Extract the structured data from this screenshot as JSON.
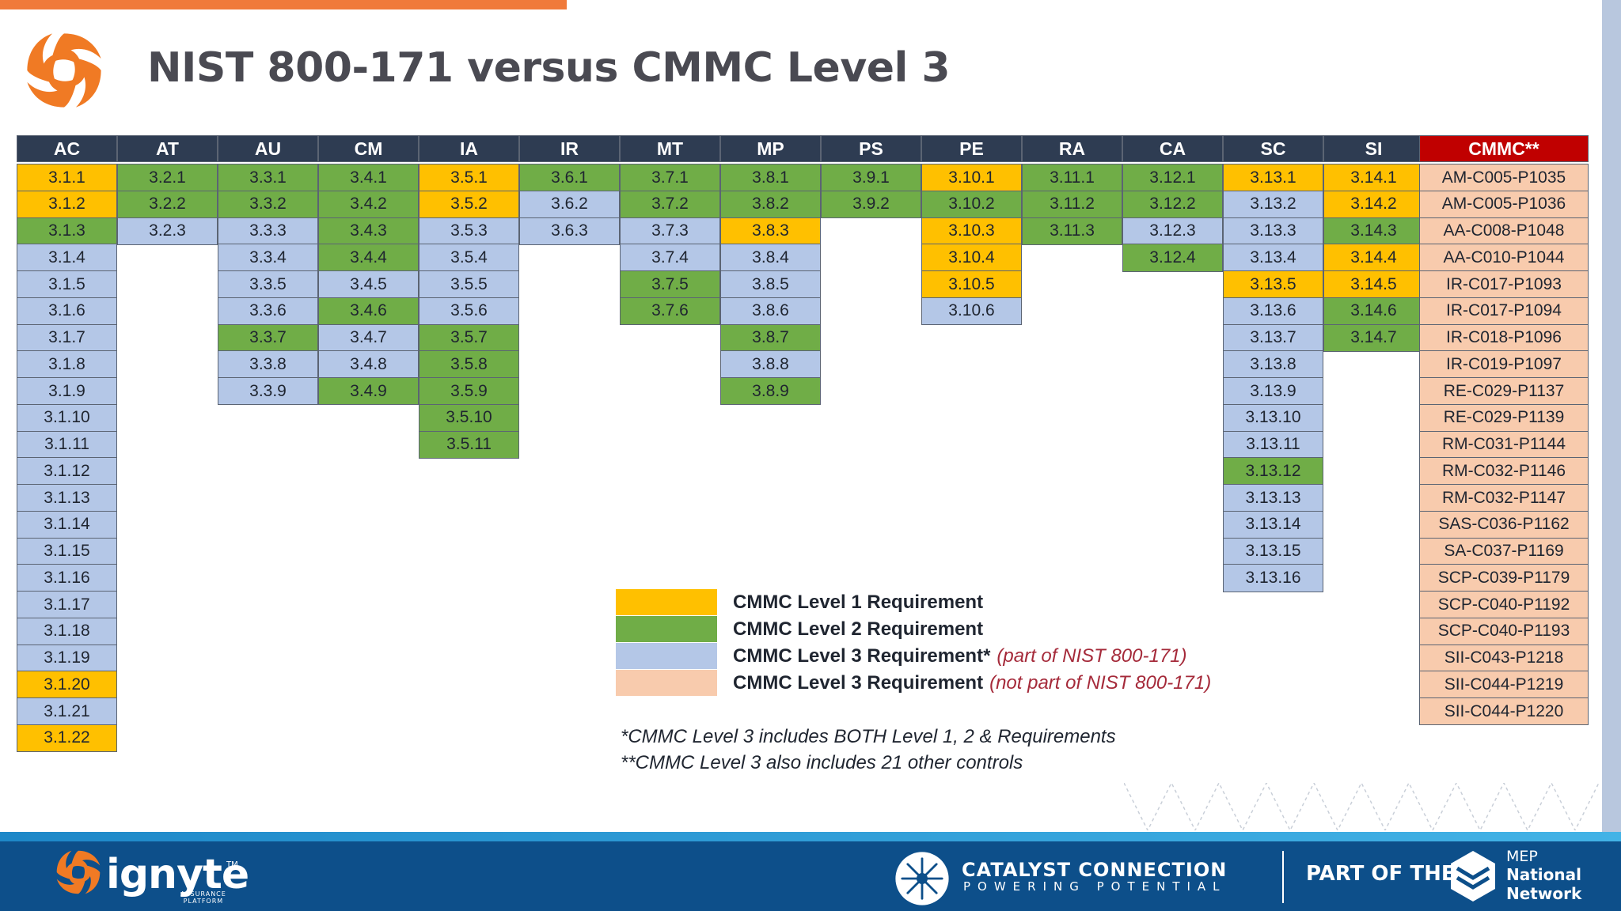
{
  "title": "NIST 800-171 versus CMMC Level 3",
  "levels": {
    "l1": "#ffc000",
    "l2": "#70ad47",
    "l3": "#b4c7e7",
    "lx": "#f8cbad"
  },
  "table": {
    "columns": [
      {
        "header": "AC",
        "cells": [
          {
            "label": "3.1.1",
            "level": "l1"
          },
          {
            "label": "3.1.2",
            "level": "l1"
          },
          {
            "label": "3.1.3",
            "level": "l2"
          },
          {
            "label": "3.1.4",
            "level": "l3"
          },
          {
            "label": "3.1.5",
            "level": "l3"
          },
          {
            "label": "3.1.6",
            "level": "l3"
          },
          {
            "label": "3.1.7",
            "level": "l3"
          },
          {
            "label": "3.1.8",
            "level": "l3"
          },
          {
            "label": "3.1.9",
            "level": "l3"
          },
          {
            "label": "3.1.10",
            "level": "l3"
          },
          {
            "label": "3.1.11",
            "level": "l3"
          },
          {
            "label": "3.1.12",
            "level": "l3"
          },
          {
            "label": "3.1.13",
            "level": "l3"
          },
          {
            "label": "3.1.14",
            "level": "l3"
          },
          {
            "label": "3.1.15",
            "level": "l3"
          },
          {
            "label": "3.1.16",
            "level": "l3"
          },
          {
            "label": "3.1.17",
            "level": "l3"
          },
          {
            "label": "3.1.18",
            "level": "l3"
          },
          {
            "label": "3.1.19",
            "level": "l3"
          },
          {
            "label": "3.1.20",
            "level": "l1"
          },
          {
            "label": "3.1.21",
            "level": "l3"
          },
          {
            "label": "3.1.22",
            "level": "l1"
          }
        ]
      },
      {
        "header": "AT",
        "cells": [
          {
            "label": "3.2.1",
            "level": "l2"
          },
          {
            "label": "3.2.2",
            "level": "l2"
          },
          {
            "label": "3.2.3",
            "level": "l3"
          }
        ]
      },
      {
        "header": "AU",
        "cells": [
          {
            "label": "3.3.1",
            "level": "l2"
          },
          {
            "label": "3.3.2",
            "level": "l2"
          },
          {
            "label": "3.3.3",
            "level": "l3"
          },
          {
            "label": "3.3.4",
            "level": "l3"
          },
          {
            "label": "3.3.5",
            "level": "l3"
          },
          {
            "label": "3.3.6",
            "level": "l3"
          },
          {
            "label": "3.3.7",
            "level": "l2"
          },
          {
            "label": "3.3.8",
            "level": "l3"
          },
          {
            "label": "3.3.9",
            "level": "l3"
          }
        ]
      },
      {
        "header": "CM",
        "cells": [
          {
            "label": "3.4.1",
            "level": "l2"
          },
          {
            "label": "3.4.2",
            "level": "l2"
          },
          {
            "label": "3.4.3",
            "level": "l2"
          },
          {
            "label": "3.4.4",
            "level": "l2"
          },
          {
            "label": "3.4.5",
            "level": "l3"
          },
          {
            "label": "3.4.6",
            "level": "l2"
          },
          {
            "label": "3.4.7",
            "level": "l3"
          },
          {
            "label": "3.4.8",
            "level": "l3"
          },
          {
            "label": "3.4.9",
            "level": "l2"
          }
        ]
      },
      {
        "header": "IA",
        "cells": [
          {
            "label": "3.5.1",
            "level": "l1"
          },
          {
            "label": "3.5.2",
            "level": "l1"
          },
          {
            "label": "3.5.3",
            "level": "l3"
          },
          {
            "label": "3.5.4",
            "level": "l3"
          },
          {
            "label": "3.5.5",
            "level": "l3"
          },
          {
            "label": "3.5.6",
            "level": "l3"
          },
          {
            "label": "3.5.7",
            "level": "l2"
          },
          {
            "label": "3.5.8",
            "level": "l2"
          },
          {
            "label": "3.5.9",
            "level": "l2"
          },
          {
            "label": "3.5.10",
            "level": "l2"
          },
          {
            "label": "3.5.11",
            "level": "l2"
          }
        ]
      },
      {
        "header": "IR",
        "cells": [
          {
            "label": "3.6.1",
            "level": "l2"
          },
          {
            "label": "3.6.2",
            "level": "l3"
          },
          {
            "label": "3.6.3",
            "level": "l3"
          }
        ]
      },
      {
        "header": "MT",
        "cells": [
          {
            "label": "3.7.1",
            "level": "l2"
          },
          {
            "label": "3.7.2",
            "level": "l2"
          },
          {
            "label": "3.7.3",
            "level": "l3"
          },
          {
            "label": "3.7.4",
            "level": "l3"
          },
          {
            "label": "3.7.5",
            "level": "l2"
          },
          {
            "label": "3.7.6",
            "level": "l2"
          }
        ]
      },
      {
        "header": "MP",
        "cells": [
          {
            "label": "3.8.1",
            "level": "l2"
          },
          {
            "label": "3.8.2",
            "level": "l2"
          },
          {
            "label": "3.8.3",
            "level": "l1"
          },
          {
            "label": "3.8.4",
            "level": "l3"
          },
          {
            "label": "3.8.5",
            "level": "l3"
          },
          {
            "label": "3.8.6",
            "level": "l3"
          },
          {
            "label": "3.8.7",
            "level": "l2"
          },
          {
            "label": "3.8.8",
            "level": "l3"
          },
          {
            "label": "3.8.9",
            "level": "l2"
          }
        ]
      },
      {
        "header": "PS",
        "cells": [
          {
            "label": "3.9.1",
            "level": "l2"
          },
          {
            "label": "3.9.2",
            "level": "l2"
          }
        ]
      },
      {
        "header": "PE",
        "cells": [
          {
            "label": "3.10.1",
            "level": "l1"
          },
          {
            "label": "3.10.2",
            "level": "l2"
          },
          {
            "label": "3.10.3",
            "level": "l1"
          },
          {
            "label": "3.10.4",
            "level": "l1"
          },
          {
            "label": "3.10.5",
            "level": "l1"
          },
          {
            "label": "3.10.6",
            "level": "l3"
          }
        ]
      },
      {
        "header": "RA",
        "cells": [
          {
            "label": "3.11.1",
            "level": "l2"
          },
          {
            "label": "3.11.2",
            "level": "l2"
          },
          {
            "label": "3.11.3",
            "level": "l2"
          }
        ]
      },
      {
        "header": "CA",
        "cells": [
          {
            "label": "3.12.1",
            "level": "l2"
          },
          {
            "label": "3.12.2",
            "level": "l2"
          },
          {
            "label": "3.12.3",
            "level": "l3"
          },
          {
            "label": "3.12.4",
            "level": "l2"
          }
        ]
      },
      {
        "header": "SC",
        "cells": [
          {
            "label": "3.13.1",
            "level": "l1"
          },
          {
            "label": "3.13.2",
            "level": "l3"
          },
          {
            "label": "3.13.3",
            "level": "l3"
          },
          {
            "label": "3.13.4",
            "level": "l3"
          },
          {
            "label": "3.13.5",
            "level": "l1"
          },
          {
            "label": "3.13.6",
            "level": "l3"
          },
          {
            "label": "3.13.7",
            "level": "l3"
          },
          {
            "label": "3.13.8",
            "level": "l3"
          },
          {
            "label": "3.13.9",
            "level": "l3"
          },
          {
            "label": "3.13.10",
            "level": "l3"
          },
          {
            "label": "3.13.11",
            "level": "l3"
          },
          {
            "label": "3.13.12",
            "level": "l2"
          },
          {
            "label": "3.13.13",
            "level": "l3"
          },
          {
            "label": "3.13.14",
            "level": "l3"
          },
          {
            "label": "3.13.15",
            "level": "l3"
          },
          {
            "label": "3.13.16",
            "level": "l3"
          }
        ]
      },
      {
        "header": "SI",
        "cells": [
          {
            "label": "3.14.1",
            "level": "l1"
          },
          {
            "label": "3.14.2",
            "level": "l1"
          },
          {
            "label": "3.14.3",
            "level": "l2"
          },
          {
            "label": "3.14.4",
            "level": "l1"
          },
          {
            "label": "3.14.5",
            "level": "l1"
          },
          {
            "label": "3.14.6",
            "level": "l2"
          },
          {
            "label": "3.14.7",
            "level": "l2"
          }
        ]
      },
      {
        "header": "CMMC**",
        "cells": [
          {
            "label": "AM-C005-P1035",
            "level": "lx"
          },
          {
            "label": "AM-C005-P1036",
            "level": "lx"
          },
          {
            "label": "AA-C008-P1048",
            "level": "lx"
          },
          {
            "label": "AA-C010-P1044",
            "level": "lx"
          },
          {
            "label": "IR-C017-P1093",
            "level": "lx"
          },
          {
            "label": "IR-C017-P1094",
            "level": "lx"
          },
          {
            "label": "IR-C018-P1096",
            "level": "lx"
          },
          {
            "label": "IR-C019-P1097",
            "level": "lx"
          },
          {
            "label": "RE-C029-P1137",
            "level": "lx"
          },
          {
            "label": "RE-C029-P1139",
            "level": "lx"
          },
          {
            "label": "RM-C031-P1144",
            "level": "lx"
          },
          {
            "label": "RM-C032-P1146",
            "level": "lx"
          },
          {
            "label": "RM-C032-P1147",
            "level": "lx"
          },
          {
            "label": "SAS-C036-P1162",
            "level": "lx"
          },
          {
            "label": "SA-C037-P1169",
            "level": "lx"
          },
          {
            "label": "SCP-C039-P1179",
            "level": "lx"
          },
          {
            "label": "SCP-C040-P1192",
            "level": "lx"
          },
          {
            "label": "SCP-C040-P1193",
            "level": "lx"
          },
          {
            "label": "SII-C043-P1218",
            "level": "lx"
          },
          {
            "label": "SII-C044-P1219",
            "level": "lx"
          },
          {
            "label": "SII-C044-P1220",
            "level": "lx"
          }
        ]
      }
    ]
  },
  "legend": [
    {
      "label": "CMMC Level 1 Requirement",
      "note": "",
      "color": "#ffc000"
    },
    {
      "label": "CMMC Level 2 Requirement",
      "note": "",
      "color": "#70ad47"
    },
    {
      "label": "CMMC Level 3 Requirement*",
      "note": "(part of NIST 800-171)",
      "color": "#b4c7e7"
    },
    {
      "label": "CMMC Level 3 Requirement",
      "note": "(not part of NIST 800-171)",
      "color": "#f8cbad"
    }
  ],
  "footnotes": [
    "*CMMC Level 3 includes BOTH Level 1, 2 & Requirements",
    "**CMMC Level 3 also includes 21 other controls"
  ],
  "footer": {
    "ignyte": "ignyte",
    "ignyte_sub": [
      "ASSURANCE",
      "PLATFORM"
    ],
    "ignyte_tm": "TM",
    "catalyst_name": "CATALYST CONNECTION",
    "catalyst_tagline": "POWERING POTENTIAL",
    "part_of": "PART OF THE",
    "mep": [
      "MEP",
      "National",
      "Network"
    ]
  }
}
